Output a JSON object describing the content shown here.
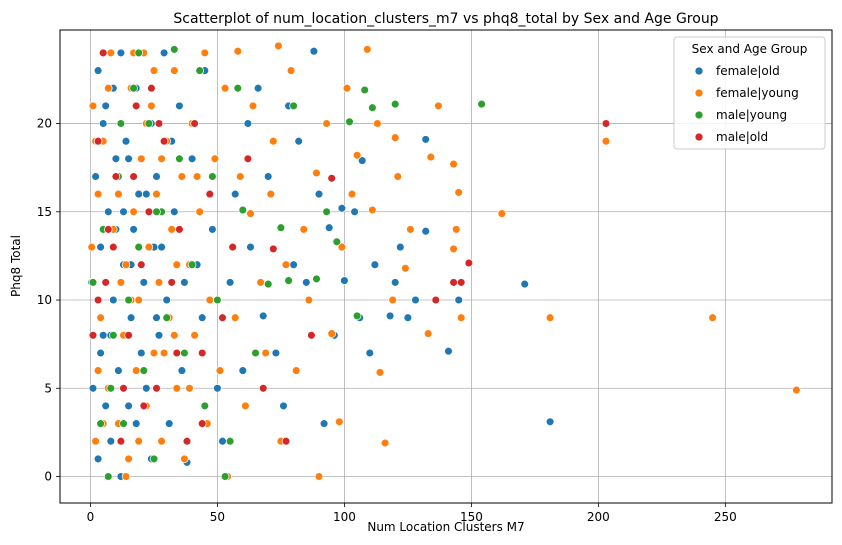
{
  "chart_data": {
    "type": "scatter",
    "title": "Scatterplot of num_location_clusters_m7 vs phq8_total by Sex and Age Group",
    "xlabel": "Num Location Clusters M7",
    "ylabel": "Phq8 Total",
    "xlim": [
      -12,
      292
    ],
    "ylim": [
      -1.5,
      25.3
    ],
    "x_ticks": [
      0,
      50,
      100,
      150,
      200,
      250
    ],
    "y_ticks": [
      0,
      5,
      10,
      15,
      20
    ],
    "grid": true,
    "legend": {
      "title": "Sex and Age Group",
      "placement": "top-right"
    },
    "series": [
      {
        "name": "female|old",
        "color": "#1f77b4",
        "points": [
          [
            181,
            3.1
          ],
          [
            171,
            10.9
          ],
          [
            145,
            10
          ],
          [
            141,
            7.1
          ],
          [
            132,
            13.9
          ],
          [
            132,
            19.1
          ],
          [
            128,
            10
          ],
          [
            125,
            9
          ],
          [
            122,
            13
          ],
          [
            120,
            11
          ],
          [
            118,
            9.1
          ],
          [
            112,
            12
          ],
          [
            110,
            7
          ],
          [
            107,
            17.9
          ],
          [
            106,
            9
          ],
          [
            104,
            15
          ],
          [
            100,
            11.1
          ],
          [
            99,
            15.2
          ],
          [
            96,
            8
          ],
          [
            94,
            14.1
          ],
          [
            92,
            3
          ],
          [
            90,
            16
          ],
          [
            88,
            24.1
          ],
          [
            85,
            11
          ],
          [
            82,
            19
          ],
          [
            80,
            12
          ],
          [
            78,
            21
          ],
          [
            76,
            4
          ],
          [
            73,
            7
          ],
          [
            70,
            17
          ],
          [
            68,
            9.1
          ],
          [
            66,
            22
          ],
          [
            63,
            13
          ],
          [
            62,
            20
          ],
          [
            60,
            6
          ],
          [
            57,
            16
          ],
          [
            55,
            11
          ],
          [
            52,
            2
          ],
          [
            50,
            5
          ],
          [
            48,
            14
          ],
          [
            45,
            23
          ],
          [
            44,
            9
          ],
          [
            42,
            12
          ],
          [
            40,
            18
          ],
          [
            38,
            0.8
          ],
          [
            36,
            6
          ],
          [
            35,
            21
          ],
          [
            33,
            15
          ],
          [
            31,
            3
          ],
          [
            30,
            10
          ],
          [
            29,
            24
          ],
          [
            27,
            8
          ],
          [
            26,
            17
          ],
          [
            25,
            13
          ],
          [
            24,
            1
          ],
          [
            23,
            20
          ],
          [
            22,
            5
          ],
          [
            21,
            11
          ],
          [
            20,
            7
          ],
          [
            19,
            16
          ],
          [
            18,
            22
          ],
          [
            17,
            14
          ],
          [
            16,
            9
          ],
          [
            15,
            4
          ],
          [
            14,
            19
          ],
          [
            13,
            12
          ],
          [
            12,
            24
          ],
          [
            11,
            6
          ],
          [
            10,
            18
          ],
          [
            9,
            10
          ],
          [
            8,
            2
          ],
          [
            7,
            15
          ],
          [
            6,
            21
          ],
          [
            5,
            8
          ],
          [
            4,
            13
          ],
          [
            3,
            23
          ],
          [
            2,
            17
          ],
          [
            1,
            5
          ],
          [
            0.5,
            11
          ],
          [
            12,
            0
          ],
          [
            18,
            3
          ],
          [
            5,
            20
          ],
          [
            22,
            16
          ],
          [
            8,
            8
          ],
          [
            28,
            13
          ],
          [
            15,
            18
          ],
          [
            3,
            10
          ],
          [
            32,
            19
          ],
          [
            9,
            22
          ],
          [
            16,
            12
          ],
          [
            6,
            4
          ],
          [
            26,
            9
          ],
          [
            13,
            15
          ],
          [
            3,
            1
          ],
          [
            20,
            24
          ],
          [
            10,
            14
          ],
          [
            37,
            11
          ],
          [
            4,
            7
          ],
          [
            24,
            20
          ],
          [
            11,
            17
          ]
        ]
      },
      {
        "name": "female|young",
        "color": "#ff7f0e",
        "points": [
          [
            278,
            4.9
          ],
          [
            245,
            9
          ],
          [
            203,
            19
          ],
          [
            181,
            9
          ],
          [
            162,
            14.9
          ],
          [
            146,
            9
          ],
          [
            145,
            16.1
          ],
          [
            144,
            14
          ],
          [
            143,
            17.7
          ],
          [
            143,
            12.9
          ],
          [
            137,
            21
          ],
          [
            134,
            18.1
          ],
          [
            133,
            8.1
          ],
          [
            126,
            14
          ],
          [
            124,
            11.8
          ],
          [
            121,
            17
          ],
          [
            120,
            19.2
          ],
          [
            119,
            10
          ],
          [
            116,
            1.9
          ],
          [
            114,
            5.9
          ],
          [
            113,
            20
          ],
          [
            111,
            15.1
          ],
          [
            109,
            24.2
          ],
          [
            105,
            18.2
          ],
          [
            103,
            16
          ],
          [
            101,
            22
          ],
          [
            99,
            13
          ],
          [
            98,
            3.1
          ],
          [
            95,
            8.1
          ],
          [
            93,
            20
          ],
          [
            90,
            0
          ],
          [
            89,
            17.2
          ],
          [
            86,
            10
          ],
          [
            84,
            14
          ],
          [
            81,
            6
          ],
          [
            79,
            23
          ],
          [
            77,
            12
          ],
          [
            75,
            2
          ],
          [
            74,
            24.4
          ],
          [
            72,
            19
          ],
          [
            71,
            16
          ],
          [
            69,
            7
          ],
          [
            67,
            11
          ],
          [
            64,
            21
          ],
          [
            63,
            14.9
          ],
          [
            61,
            4
          ],
          [
            59,
            17
          ],
          [
            58,
            24.1
          ],
          [
            57,
            9
          ],
          [
            56,
            13
          ],
          [
            54,
            0
          ],
          [
            53,
            22
          ],
          [
            51,
            6
          ],
          [
            49,
            18
          ],
          [
            47,
            10
          ],
          [
            46,
            3
          ],
          [
            45,
            24
          ],
          [
            43,
            15
          ],
          [
            41,
            8
          ],
          [
            40,
            20
          ],
          [
            39,
            12
          ],
          [
            37,
            1
          ],
          [
            36,
            17
          ],
          [
            34,
            5
          ],
          [
            33,
            23
          ],
          [
            32,
            14
          ],
          [
            31,
            9
          ],
          [
            30,
            19
          ],
          [
            28,
            2
          ],
          [
            27,
            11
          ],
          [
            26,
            16
          ],
          [
            25,
            7
          ],
          [
            24,
            21
          ],
          [
            23,
            13
          ],
          [
            22,
            4
          ],
          [
            21,
            24
          ],
          [
            20,
            18
          ],
          [
            19,
            10
          ],
          [
            18,
            6
          ],
          [
            17,
            15
          ],
          [
            16,
            22
          ],
          [
            15,
            1
          ],
          [
            14,
            12
          ],
          [
            13,
            8
          ],
          [
            12,
            20
          ],
          [
            11,
            3
          ],
          [
            10,
            17
          ],
          [
            9,
            14
          ],
          [
            8,
            24
          ],
          [
            7,
            5
          ],
          [
            6,
            11
          ],
          [
            5,
            19
          ],
          [
            4,
            9
          ],
          [
            3,
            16
          ],
          [
            2,
            2
          ],
          [
            1,
            21
          ],
          [
            0.5,
            13
          ],
          [
            14,
            0
          ],
          [
            29,
            7
          ],
          [
            7,
            22
          ],
          [
            19,
            2
          ],
          [
            34,
            12
          ],
          [
            11,
            16
          ],
          [
            25,
            23
          ],
          [
            3,
            6
          ],
          [
            16,
            10
          ],
          [
            42,
            17
          ],
          [
            6,
            14
          ],
          [
            22,
            20
          ],
          [
            39,
            5
          ],
          [
            12,
            11
          ],
          [
            28,
            18
          ],
          [
            5,
            3
          ],
          [
            17,
            24
          ],
          [
            33,
            8
          ],
          [
            9,
            13
          ],
          [
            23,
            15
          ],
          [
            2,
            19
          ]
        ]
      },
      {
        "name": "male|young",
        "color": "#2ca02c",
        "points": [
          [
            154,
            21.1
          ],
          [
            120,
            21.1
          ],
          [
            111,
            20.9
          ],
          [
            108,
            21.9
          ],
          [
            105,
            9.1
          ],
          [
            102,
            20.1
          ],
          [
            97,
            13.3
          ],
          [
            93,
            15
          ],
          [
            89,
            11.2
          ],
          [
            80,
            21
          ],
          [
            78,
            11.1
          ],
          [
            75,
            14.1
          ],
          [
            70,
            10.9
          ],
          [
            65,
            7
          ],
          [
            60,
            15.1
          ],
          [
            58,
            22
          ],
          [
            55,
            2
          ],
          [
            53,
            0
          ],
          [
            50,
            10
          ],
          [
            48,
            17
          ],
          [
            45,
            4
          ],
          [
            43,
            23
          ],
          [
            40,
            12
          ],
          [
            37,
            7
          ],
          [
            35,
            18
          ],
          [
            33,
            24.2
          ],
          [
            30,
            9
          ],
          [
            28,
            15
          ],
          [
            25,
            1
          ],
          [
            23,
            20
          ],
          [
            21,
            6
          ],
          [
            19,
            13
          ],
          [
            17,
            22
          ],
          [
            15,
            10
          ],
          [
            13,
            3
          ],
          [
            11,
            17
          ],
          [
            9,
            8
          ],
          [
            7,
            0
          ],
          [
            5,
            14
          ],
          [
            3,
            19
          ],
          [
            1,
            11
          ],
          [
            19,
            24
          ],
          [
            8,
            5
          ],
          [
            26,
            15
          ],
          [
            12,
            20
          ],
          [
            4,
            3
          ]
        ]
      },
      {
        "name": "male|old",
        "color": "#d62728",
        "points": [
          [
            203,
            20
          ],
          [
            149,
            12.1
          ],
          [
            146,
            11
          ],
          [
            143,
            11
          ],
          [
            136,
            10
          ],
          [
            95,
            16.9
          ],
          [
            87,
            8
          ],
          [
            77,
            2
          ],
          [
            72,
            12.9
          ],
          [
            68,
            5
          ],
          [
            62,
            18
          ],
          [
            56,
            13
          ],
          [
            52,
            9
          ],
          [
            47,
            16
          ],
          [
            44,
            7
          ],
          [
            41,
            20
          ],
          [
            38,
            2
          ],
          [
            35,
            14
          ],
          [
            32,
            11
          ],
          [
            29,
            19
          ],
          [
            26,
            5
          ],
          [
            23,
            15
          ],
          [
            20,
            12
          ],
          [
            18,
            21
          ],
          [
            15,
            8
          ],
          [
            12,
            2
          ],
          [
            10,
            17
          ],
          [
            7,
            14
          ],
          [
            5,
            24
          ],
          [
            3,
            10
          ],
          [
            1,
            8
          ],
          [
            13,
            5
          ],
          [
            27,
            20
          ],
          [
            9,
            13
          ],
          [
            21,
            4
          ],
          [
            17,
            17
          ],
          [
            3,
            19
          ],
          [
            34,
            7
          ],
          [
            6,
            11
          ],
          [
            24,
            22
          ],
          [
            44,
            3
          ]
        ]
      }
    ]
  }
}
